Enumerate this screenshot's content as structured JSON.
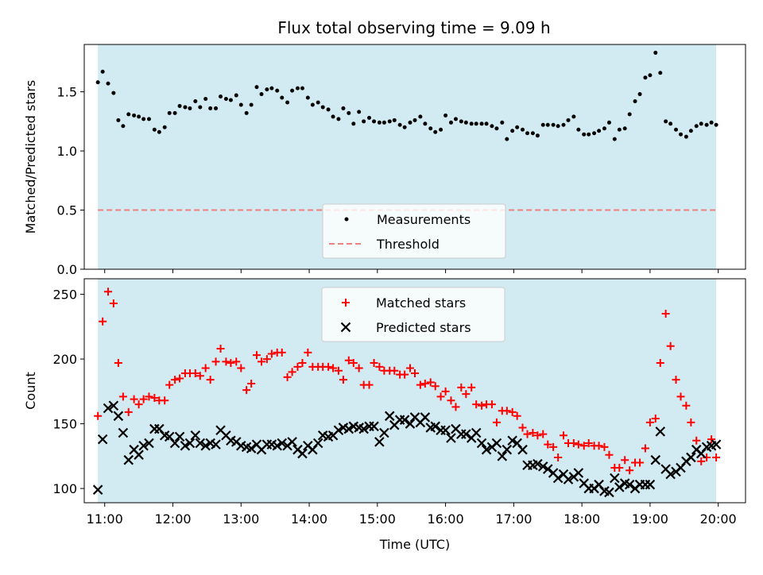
{
  "figure": {
    "title": "Flux total observing time = 9.09 h"
  },
  "colors": {
    "shade": "#add8e6",
    "measurements": "#000000",
    "threshold": "#f08080",
    "matched": "#ff0000",
    "predicted": "#000000"
  },
  "chart_data": [
    {
      "type": "scatter",
      "panel": "top",
      "ylabel": "Matched/Predicted stars",
      "xlim": [
        10.7,
        20.4
      ],
      "ylim": [
        0,
        1.9
      ],
      "yticks": [
        0.0,
        0.5,
        1.0,
        1.5
      ],
      "ytick_labels": [
        "0.0",
        "0.5",
        "1.0",
        "1.5"
      ],
      "shaded_span": [
        10.9,
        19.97
      ],
      "threshold": 0.5,
      "legend": {
        "position": "lower center",
        "entries": [
          "Measurements",
          "Threshold"
        ]
      },
      "series": [
        {
          "name": "Measurements",
          "marker": "dot",
          "x": [
            10.9,
            10.97,
            11.05,
            11.13,
            11.2,
            11.27,
            11.35,
            11.43,
            11.5,
            11.57,
            11.65,
            11.73,
            11.8,
            11.88,
            11.95,
            12.03,
            12.1,
            12.18,
            12.25,
            12.33,
            12.4,
            12.48,
            12.55,
            12.63,
            12.7,
            12.78,
            12.85,
            12.93,
            13.0,
            13.08,
            13.15,
            13.23,
            13.3,
            13.38,
            13.45,
            13.53,
            13.6,
            13.68,
            13.75,
            13.83,
            13.9,
            13.98,
            14.05,
            14.13,
            14.2,
            14.28,
            14.35,
            14.43,
            14.5,
            14.58,
            14.65,
            14.73,
            14.8,
            14.88,
            14.95,
            15.03,
            15.1,
            15.18,
            15.25,
            15.33,
            15.4,
            15.48,
            15.55,
            15.63,
            15.7,
            15.78,
            15.85,
            15.93,
            16.0,
            16.08,
            16.15,
            16.23,
            16.3,
            16.38,
            16.45,
            16.53,
            16.6,
            16.68,
            16.75,
            16.83,
            16.9,
            16.98,
            17.05,
            17.13,
            17.2,
            17.28,
            17.35,
            17.43,
            17.5,
            17.58,
            17.65,
            17.73,
            17.8,
            17.88,
            17.95,
            18.03,
            18.1,
            18.18,
            18.25,
            18.33,
            18.4,
            18.48,
            18.55,
            18.63,
            18.7,
            18.78,
            18.85,
            18.93,
            19.0,
            19.08,
            19.15,
            19.23,
            19.3,
            19.38,
            19.45,
            19.53,
            19.6,
            19.68,
            19.75,
            19.83,
            19.9,
            19.97
          ],
          "y": [
            1.58,
            1.67,
            1.57,
            1.49,
            1.26,
            1.21,
            1.31,
            1.3,
            1.29,
            1.27,
            1.27,
            1.18,
            1.16,
            1.2,
            1.32,
            1.32,
            1.38,
            1.37,
            1.36,
            1.42,
            1.37,
            1.44,
            1.36,
            1.36,
            1.46,
            1.44,
            1.43,
            1.47,
            1.39,
            1.32,
            1.39,
            1.54,
            1.48,
            1.52,
            1.53,
            1.51,
            1.45,
            1.41,
            1.51,
            1.53,
            1.53,
            1.45,
            1.39,
            1.41,
            1.37,
            1.35,
            1.29,
            1.27,
            1.36,
            1.32,
            1.23,
            1.33,
            1.25,
            1.28,
            1.25,
            1.24,
            1.24,
            1.25,
            1.26,
            1.22,
            1.2,
            1.24,
            1.26,
            1.29,
            1.23,
            1.19,
            1.16,
            1.18,
            1.3,
            1.24,
            1.27,
            1.25,
            1.24,
            1.23,
            1.23,
            1.23,
            1.23,
            1.21,
            1.19,
            1.24,
            1.1,
            1.17,
            1.2,
            1.18,
            1.15,
            1.15,
            1.13,
            1.22,
            1.22,
            1.22,
            1.21,
            1.22,
            1.26,
            1.29,
            1.18,
            1.14,
            1.14,
            1.15,
            1.17,
            1.19,
            1.24,
            1.1,
            1.18,
            1.19,
            1.31,
            1.42,
            1.48,
            1.62,
            1.64,
            1.83,
            1.66,
            1.25,
            1.23,
            1.18,
            1.14,
            1.12,
            1.17,
            1.21,
            1.23,
            1.22,
            1.24,
            1.22
          ]
        },
        {
          "name": "Threshold",
          "style": "dashed",
          "x": [
            10.9,
            19.97
          ],
          "y": [
            0.5,
            0.5
          ]
        }
      ]
    },
    {
      "type": "scatter",
      "panel": "bottom",
      "xlabel": "Time (UTC)",
      "ylabel": "Count",
      "xlim": [
        10.7,
        20.4
      ],
      "ylim": [
        89,
        262
      ],
      "xticks": [
        11,
        12,
        13,
        14,
        15,
        16,
        17,
        18,
        19,
        20
      ],
      "xtick_labels": [
        "11:00",
        "12:00",
        "13:00",
        "14:00",
        "15:00",
        "16:00",
        "17:00",
        "18:00",
        "19:00",
        "20:00"
      ],
      "yticks": [
        100,
        150,
        200,
        250
      ],
      "ytick_labels": [
        "100",
        "150",
        "200",
        "250"
      ],
      "shaded_span": [
        10.9,
        19.97
      ],
      "legend": {
        "position": "upper center",
        "entries": [
          "Matched stars",
          "Predicted stars"
        ]
      },
      "series": [
        {
          "name": "Matched stars",
          "marker": "plus",
          "x": [
            10.9,
            10.97,
            11.05,
            11.13,
            11.2,
            11.27,
            11.35,
            11.43,
            11.5,
            11.57,
            11.65,
            11.73,
            11.8,
            11.88,
            11.95,
            12.03,
            12.1,
            12.18,
            12.25,
            12.33,
            12.4,
            12.48,
            12.55,
            12.63,
            12.7,
            12.78,
            12.85,
            12.93,
            13.0,
            13.08,
            13.15,
            13.23,
            13.3,
            13.38,
            13.45,
            13.53,
            13.6,
            13.68,
            13.75,
            13.83,
            13.9,
            13.98,
            14.05,
            14.13,
            14.2,
            14.28,
            14.35,
            14.43,
            14.5,
            14.58,
            14.65,
            14.73,
            14.8,
            14.88,
            14.95,
            15.03,
            15.1,
            15.18,
            15.25,
            15.33,
            15.4,
            15.48,
            15.55,
            15.63,
            15.7,
            15.78,
            15.85,
            15.93,
            16.0,
            16.08,
            16.15,
            16.23,
            16.3,
            16.38,
            16.45,
            16.53,
            16.6,
            16.68,
            16.75,
            16.83,
            16.9,
            16.98,
            17.05,
            17.13,
            17.2,
            17.28,
            17.35,
            17.43,
            17.5,
            17.58,
            17.65,
            17.73,
            17.8,
            17.88,
            17.95,
            18.03,
            18.1,
            18.18,
            18.25,
            18.33,
            18.4,
            18.48,
            18.55,
            18.63,
            18.7,
            18.78,
            18.85,
            18.93,
            19.0,
            19.08,
            19.15,
            19.23,
            19.3,
            19.38,
            19.45,
            19.53,
            19.6,
            19.68,
            19.75,
            19.83,
            19.9,
            19.97
          ],
          "y": [
            156,
            229,
            252,
            243,
            197,
            171,
            159,
            169,
            165,
            169,
            171,
            170,
            168,
            168,
            180,
            184,
            185,
            189,
            189,
            189,
            187,
            193,
            184,
            198,
            208,
            198,
            197,
            198,
            193,
            176,
            181,
            203,
            198,
            200,
            204,
            205,
            205,
            186,
            190,
            194,
            197,
            205,
            194,
            194,
            194,
            194,
            193,
            191,
            184,
            199,
            197,
            193,
            180,
            180,
            197,
            194,
            191,
            191,
            191,
            188,
            188,
            193,
            189,
            180,
            181,
            182,
            179,
            171,
            175,
            168,
            163,
            178,
            173,
            178,
            165,
            164,
            165,
            165,
            151,
            160,
            160,
            159,
            156,
            147,
            142,
            143,
            141,
            142,
            134,
            132,
            124,
            141,
            135,
            135,
            134,
            133,
            135,
            133,
            133,
            132,
            126,
            116,
            116,
            122,
            114,
            120,
            120,
            131,
            151,
            154,
            197,
            235,
            210,
            184,
            171,
            164,
            151,
            137,
            121,
            124,
            138,
            124
          ]
        },
        {
          "name": "Predicted stars",
          "marker": "x",
          "x": [
            10.9,
            10.97,
            11.05,
            11.13,
            11.2,
            11.27,
            11.35,
            11.43,
            11.5,
            11.57,
            11.65,
            11.73,
            11.8,
            11.88,
            11.95,
            12.03,
            12.1,
            12.18,
            12.25,
            12.33,
            12.4,
            12.48,
            12.55,
            12.63,
            12.7,
            12.78,
            12.85,
            12.93,
            13.0,
            13.08,
            13.15,
            13.23,
            13.3,
            13.38,
            13.45,
            13.53,
            13.6,
            13.68,
            13.75,
            13.83,
            13.9,
            13.98,
            14.05,
            14.13,
            14.2,
            14.28,
            14.35,
            14.43,
            14.5,
            14.58,
            14.65,
            14.73,
            14.8,
            14.88,
            14.95,
            15.03,
            15.1,
            15.18,
            15.25,
            15.33,
            15.4,
            15.48,
            15.55,
            15.63,
            15.7,
            15.78,
            15.85,
            15.93,
            16.0,
            16.08,
            16.15,
            16.23,
            16.3,
            16.38,
            16.45,
            16.53,
            16.6,
            16.68,
            16.75,
            16.83,
            16.9,
            16.98,
            17.05,
            17.13,
            17.2,
            17.28,
            17.35,
            17.43,
            17.5,
            17.58,
            17.65,
            17.73,
            17.8,
            17.88,
            17.95,
            18.03,
            18.1,
            18.18,
            18.25,
            18.33,
            18.4,
            18.48,
            18.55,
            18.63,
            18.7,
            18.78,
            18.85,
            18.93,
            19.0,
            19.08,
            19.15,
            19.23,
            19.3,
            19.38,
            19.45,
            19.53,
            19.6,
            19.68,
            19.75,
            19.83,
            19.9,
            19.97
          ],
          "y": [
            99,
            138,
            162,
            164,
            156,
            143,
            122,
            130,
            126,
            133,
            135,
            146,
            146,
            141,
            140,
            135,
            140,
            133,
            135,
            141,
            135,
            133,
            135,
            134,
            145,
            141,
            137,
            136,
            133,
            132,
            131,
            134,
            130,
            134,
            134,
            133,
            135,
            133,
            136,
            130,
            127,
            133,
            130,
            135,
            141,
            140,
            141,
            145,
            147,
            146,
            148,
            147,
            146,
            148,
            148,
            136,
            143,
            156,
            149,
            153,
            153,
            150,
            155,
            151,
            155,
            147,
            148,
            145,
            145,
            139,
            146,
            142,
            142,
            139,
            143,
            135,
            130,
            132,
            135,
            125,
            130,
            137,
            135,
            130,
            118,
            118,
            119,
            117,
            115,
            112,
            108,
            111,
            107,
            109,
            112,
            104,
            100,
            100,
            103,
            98,
            97,
            108,
            101,
            104,
            103,
            100,
            103,
            103,
            103,
            122,
            144,
            115,
            111,
            113,
            116,
            121,
            124,
            130,
            127,
            132,
            133,
            134
          ]
        }
      ]
    }
  ]
}
